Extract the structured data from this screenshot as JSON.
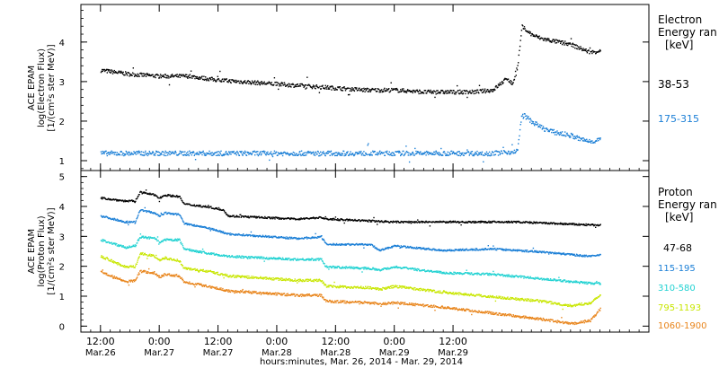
{
  "chart_data": [
    {
      "type": "scatter",
      "ylabel_lines": [
        "ACE EPAM",
        "log(Electron Flux)",
        "[1/(cm²s ster MeV)]"
      ],
      "ylim": [
        0.75,
        4.95
      ],
      "yticks": [
        1,
        2,
        3,
        4
      ],
      "legend_title": [
        "Electron",
        "Energy ran",
        "[keV]"
      ],
      "series": [
        {
          "name": "38-53",
          "color": "#000000",
          "points": [
            [
              0,
              3.3
            ],
            [
              6,
              3.2
            ],
            [
              12,
              3.15
            ],
            [
              18,
              3.15
            ],
            [
              24,
              3.05
            ],
            [
              30,
              3.0
            ],
            [
              36,
              2.95
            ],
            [
              42,
              2.9
            ],
            [
              48,
              2.85
            ],
            [
              54,
              2.8
            ],
            [
              60,
              2.8
            ],
            [
              66,
              2.75
            ],
            [
              72,
              2.75
            ],
            [
              76,
              2.75
            ],
            [
              80,
              2.8
            ],
            [
              82,
              3.0
            ],
            [
              83,
              3.1
            ],
            [
              84,
              2.95
            ],
            [
              85,
              3.3
            ],
            [
              86,
              4.4
            ],
            [
              88,
              4.2
            ],
            [
              90,
              4.1
            ],
            [
              92,
              4.05
            ],
            [
              94,
              4.0
            ],
            [
              96,
              3.95
            ],
            [
              98,
              3.85
            ],
            [
              100,
              3.75
            ],
            [
              102,
              3.8
            ]
          ],
          "scatter": 0.05
        },
        {
          "name": "175-315",
          "color": "#1b7fd6",
          "points": [
            [
              0,
              1.2
            ],
            [
              10,
              1.2
            ],
            [
              20,
              1.2
            ],
            [
              30,
              1.2
            ],
            [
              40,
              1.2
            ],
            [
              50,
              1.2
            ],
            [
              60,
              1.2
            ],
            [
              70,
              1.2
            ],
            [
              80,
              1.2
            ],
            [
              85,
              1.25
            ],
            [
              86,
              2.2
            ],
            [
              88,
              2.0
            ],
            [
              90,
              1.85
            ],
            [
              92,
              1.75
            ],
            [
              94,
              1.7
            ],
            [
              96,
              1.65
            ],
            [
              98,
              1.55
            ],
            [
              100,
              1.5
            ],
            [
              102,
              1.55
            ]
          ],
          "scatter": 0.06
        }
      ]
    },
    {
      "type": "scatter",
      "ylabel_lines": [
        "ACE EPAM",
        "log(Proton Flux)",
        "[1/(cm²s ster MeV)]"
      ],
      "ylim": [
        -0.2,
        5.2
      ],
      "yticks": [
        0,
        1,
        2,
        3,
        4,
        5
      ],
      "legend_title": [
        "Proton",
        "Energy ran",
        "[keV]"
      ],
      "series": [
        {
          "name": "47-68",
          "color": "#000000",
          "points": [
            [
              0,
              4.3
            ],
            [
              5,
              4.2
            ],
            [
              7,
              4.2
            ],
            [
              8,
              4.5
            ],
            [
              11,
              4.4
            ],
            [
              12,
              4.3
            ],
            [
              13,
              4.4
            ],
            [
              16,
              4.35
            ],
            [
              17,
              4.1
            ],
            [
              22,
              4.0
            ],
            [
              25,
              3.9
            ],
            [
              26,
              3.7
            ],
            [
              40,
              3.6
            ],
            [
              45,
              3.65
            ],
            [
              46,
              3.6
            ],
            [
              60,
              3.5
            ],
            [
              75,
              3.5
            ],
            [
              85,
              3.5
            ],
            [
              100,
              3.4
            ],
            [
              102,
              3.4
            ]
          ],
          "scatter": 0.03
        },
        {
          "name": "115-195",
          "color": "#1b7fd6",
          "points": [
            [
              0,
              3.7
            ],
            [
              5,
              3.5
            ],
            [
              7,
              3.5
            ],
            [
              8,
              3.9
            ],
            [
              11,
              3.8
            ],
            [
              12,
              3.7
            ],
            [
              13,
              3.8
            ],
            [
              16,
              3.75
            ],
            [
              17,
              3.45
            ],
            [
              22,
              3.3
            ],
            [
              26,
              3.1
            ],
            [
              40,
              2.95
            ],
            [
              45,
              3.0
            ],
            [
              46,
              2.75
            ],
            [
              55,
              2.75
            ],
            [
              57,
              2.55
            ],
            [
              60,
              2.7
            ],
            [
              70,
              2.55
            ],
            [
              80,
              2.6
            ],
            [
              90,
              2.5
            ],
            [
              100,
              2.35
            ],
            [
              102,
              2.4
            ]
          ],
          "scatter": 0.03
        },
        {
          "name": "310-580",
          "color": "#22d2d2",
          "points": [
            [
              0,
              2.9
            ],
            [
              5,
              2.65
            ],
            [
              7,
              2.7
            ],
            [
              8,
              3.0
            ],
            [
              11,
              2.95
            ],
            [
              12,
              2.8
            ],
            [
              13,
              2.9
            ],
            [
              16,
              2.9
            ],
            [
              17,
              2.6
            ],
            [
              22,
              2.45
            ],
            [
              26,
              2.35
            ],
            [
              40,
              2.25
            ],
            [
              45,
              2.25
            ],
            [
              46,
              2.0
            ],
            [
              55,
              1.95
            ],
            [
              57,
              1.9
            ],
            [
              60,
              2.0
            ],
            [
              70,
              1.8
            ],
            [
              80,
              1.75
            ],
            [
              90,
              1.6
            ],
            [
              100,
              1.45
            ],
            [
              102,
              1.45
            ]
          ],
          "scatter": 0.035
        },
        {
          "name": "795-1193",
          "color": "#c8e600",
          "points": [
            [
              0,
              2.35
            ],
            [
              5,
              2.0
            ],
            [
              7,
              2.0
            ],
            [
              8,
              2.45
            ],
            [
              11,
              2.35
            ],
            [
              12,
              2.2
            ],
            [
              13,
              2.3
            ],
            [
              16,
              2.2
            ],
            [
              17,
              1.95
            ],
            [
              22,
              1.85
            ],
            [
              26,
              1.7
            ],
            [
              40,
              1.55
            ],
            [
              45,
              1.55
            ],
            [
              46,
              1.35
            ],
            [
              55,
              1.3
            ],
            [
              57,
              1.25
            ],
            [
              60,
              1.35
            ],
            [
              70,
              1.15
            ],
            [
              80,
              1.0
            ],
            [
              90,
              0.85
            ],
            [
              96,
              0.7
            ],
            [
              100,
              0.8
            ],
            [
              102,
              1.05
            ]
          ],
          "scatter": 0.04
        },
        {
          "name": "1060-1900",
          "color": "#e8841a",
          "points": [
            [
              0,
              1.85
            ],
            [
              5,
              1.5
            ],
            [
              7,
              1.55
            ],
            [
              8,
              1.85
            ],
            [
              11,
              1.8
            ],
            [
              12,
              1.65
            ],
            [
              13,
              1.75
            ],
            [
              16,
              1.7
            ],
            [
              17,
              1.5
            ],
            [
              22,
              1.35
            ],
            [
              26,
              1.2
            ],
            [
              40,
              1.05
            ],
            [
              45,
              1.05
            ],
            [
              46,
              0.85
            ],
            [
              55,
              0.8
            ],
            [
              57,
              0.75
            ],
            [
              60,
              0.8
            ],
            [
              70,
              0.65
            ],
            [
              80,
              0.45
            ],
            [
              90,
              0.25
            ],
            [
              96,
              0.1
            ],
            [
              100,
              0.2
            ],
            [
              102,
              0.6
            ]
          ],
          "scatter": 0.04
        }
      ]
    }
  ],
  "x_axis": {
    "xlim": [
      -4,
      112
    ],
    "ticks": [
      {
        "x": 0,
        "time": "12:00",
        "date": "Mar.26"
      },
      {
        "x": 12,
        "time": "0:00",
        "date": "Mar.27"
      },
      {
        "x": 24,
        "time": "12:00",
        "date": "Mar.27"
      },
      {
        "x": 36,
        "time": "0:00",
        "date": "Mar.28"
      },
      {
        "x": 48,
        "time": "12:00",
        "date": "Mar.28"
      },
      {
        "x": 60,
        "time": "0:00",
        "date": "Mar.29"
      },
      {
        "x": 72,
        "time": "12:00",
        "date": "Mar.29"
      }
    ],
    "xlabel": "hours:minutes, Mar. 26, 2014 - Mar. 29, 2014"
  }
}
